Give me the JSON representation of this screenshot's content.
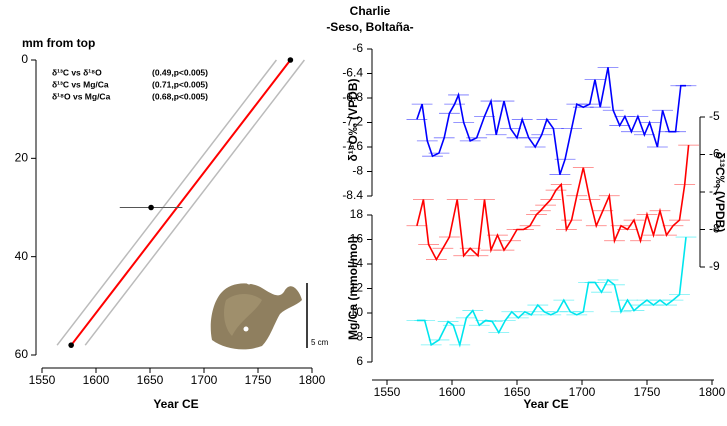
{
  "chart_data": [
    {
      "type": "agemodel",
      "ylabel": "mm from top",
      "xlabel": "Year CE",
      "xlim": [
        1550,
        1800
      ],
      "xticks": [
        1550,
        1600,
        1650,
        1700,
        1750,
        1800
      ],
      "ylim": [
        0,
        60
      ],
      "yticks": [
        0,
        20,
        40,
        60
      ],
      "y_reversed": true,
      "series": [
        {
          "color": "#ff0000",
          "x": [
            1780,
            1577
          ],
          "values": [
            0,
            58
          ]
        },
        {
          "color": "#bbbbbb",
          "x": [
            1793,
            1590
          ],
          "values": [
            0,
            58
          ]
        },
        {
          "color": "#bbbbbb",
          "x": [
            1767,
            1564
          ],
          "values": [
            0,
            58
          ]
        }
      ],
      "points": {
        "color": "#000000",
        "x": [
          1780,
          1651,
          1577
        ],
        "values": [
          0,
          30,
          58
        ],
        "x_errors": [
          null,
          29,
          null
        ]
      },
      "annotations": [
        {
          "pair": "δ¹³C vs δ¹⁸O",
          "stat": "(0.49,p<0.005)"
        },
        {
          "pair": "δ¹³C vs Mg/Ca",
          "stat": "(0.71,p<0.005)"
        },
        {
          "pair": "δ¹⁸O vs Mg/Ca",
          "stat": "(0.68,p<0.005)"
        }
      ],
      "scale_label": "5 cm"
    },
    {
      "type": "line",
      "title": "Charlie",
      "subtitle": "-Seso, Boltaña-",
      "xlabel": "Year CE",
      "xlim": [
        1550,
        1800
      ],
      "xticks": [
        1550,
        1600,
        1650,
        1700,
        1750,
        1800
      ],
      "ylabel": "δ¹⁸O‰ (VPDB)",
      "ylim": [
        -8.4,
        -6
      ],
      "yticks": [
        -8.4,
        -8,
        -7.6,
        -7.2,
        -6.8,
        -6.4,
        -6
      ],
      "y2label": "δ¹³C‰ (VPDB)",
      "y2lim": [
        -9,
        -5
      ],
      "y2ticks": [
        -9,
        -8,
        -7,
        -6,
        -5
      ],
      "y3label": "Mg/Ca (mmol/mol)",
      "y3lim": [
        6,
        18
      ],
      "y3ticks": [
        6,
        8,
        10,
        12,
        14,
        16,
        18
      ],
      "series": [
        {
          "color": "#0000ff",
          "axis": "y",
          "x_error": 8,
          "x": [
            1573,
            1577,
            1581,
            1585,
            1590,
            1594,
            1598,
            1602,
            1605,
            1609,
            1614,
            1619,
            1625,
            1630,
            1634,
            1640,
            1645,
            1650,
            1654,
            1659,
            1664,
            1669,
            1673,
            1678,
            1683,
            1687,
            1692,
            1696,
            1701,
            1706,
            1710,
            1714,
            1720,
            1724,
            1729,
            1733,
            1738,
            1743,
            1748,
            1752,
            1758,
            1762,
            1767,
            1772,
            1776,
            1780
          ],
          "values": [
            -7.15,
            -6.9,
            -7.5,
            -7.75,
            -7.7,
            -7.45,
            -7.05,
            -6.9,
            -6.75,
            -7.2,
            -7.5,
            -7.45,
            -7.1,
            -6.85,
            -7.4,
            -6.85,
            -7.3,
            -7.45,
            -7.15,
            -7.45,
            -7.6,
            -7.4,
            -7.15,
            -7.3,
            -8.05,
            -7.8,
            -7.3,
            -6.9,
            -6.95,
            -6.9,
            -6.5,
            -6.95,
            -6.3,
            -7.0,
            -7.25,
            -7.1,
            -7.35,
            -7.1,
            -7.4,
            -7.2,
            -7.6,
            -7.0,
            -7.35,
            -7.35,
            -6.6,
            -6.6
          ]
        },
        {
          "color": "#ff0000",
          "axis": "y2",
          "x_error": 8,
          "x": [
            1573,
            1578,
            1582,
            1588,
            1593,
            1598,
            1604,
            1609,
            1614,
            1620,
            1625,
            1630,
            1635,
            1640,
            1645,
            1650,
            1655,
            1660,
            1665,
            1668,
            1672,
            1676,
            1680,
            1684,
            1688,
            1692,
            1696,
            1701,
            1706,
            1711,
            1716,
            1721,
            1725,
            1730,
            1735,
            1740,
            1745,
            1750,
            1755,
            1760,
            1765,
            1770,
            1775,
            1779,
            1782
          ],
          "values": [
            -7.9,
            -7.2,
            -8.4,
            -8.8,
            -8.5,
            -8.2,
            -7.2,
            -8.7,
            -8.5,
            -8.7,
            -7.2,
            -8.55,
            -8.15,
            -8.55,
            -8.3,
            -8.0,
            -8.0,
            -7.9,
            -7.6,
            -7.5,
            -7.35,
            -7.2,
            -6.95,
            -6.8,
            -8.0,
            -7.75,
            -7.1,
            -6.35,
            -7.2,
            -7.9,
            -7.5,
            -7.1,
            -8.3,
            -7.9,
            -8.0,
            -7.75,
            -8.3,
            -7.6,
            -8.15,
            -7.5,
            -8.15,
            -7.9,
            -7.75,
            -6.8,
            -5.75
          ]
        },
        {
          "color": "#00e5ee",
          "axis": "y3",
          "x_error": 8,
          "x": [
            1573,
            1579,
            1584,
            1590,
            1597,
            1601,
            1606,
            1611,
            1616,
            1621,
            1626,
            1631,
            1636,
            1641,
            1646,
            1651,
            1656,
            1661,
            1666,
            1671,
            1676,
            1681,
            1686,
            1691,
            1696,
            1701,
            1705,
            1710,
            1715,
            1720,
            1725,
            1730,
            1735,
            1740,
            1745,
            1750,
            1755,
            1760,
            1765,
            1770,
            1775,
            1780
          ],
          "values": [
            9.4,
            9.4,
            7.4,
            7.8,
            9.3,
            9.0,
            7.4,
            9.6,
            10.2,
            9.0,
            9.4,
            9.3,
            8.4,
            9.4,
            10.1,
            9.6,
            10.1,
            9.85,
            10.65,
            10.1,
            9.85,
            10.1,
            11.05,
            10.1,
            9.85,
            10.1,
            12.5,
            12.5,
            11.7,
            12.7,
            12.3,
            10.1,
            11.05,
            10.2,
            10.65,
            11.05,
            10.65,
            11.05,
            10.65,
            11.05,
            11.5,
            16.2
          ]
        }
      ]
    }
  ]
}
